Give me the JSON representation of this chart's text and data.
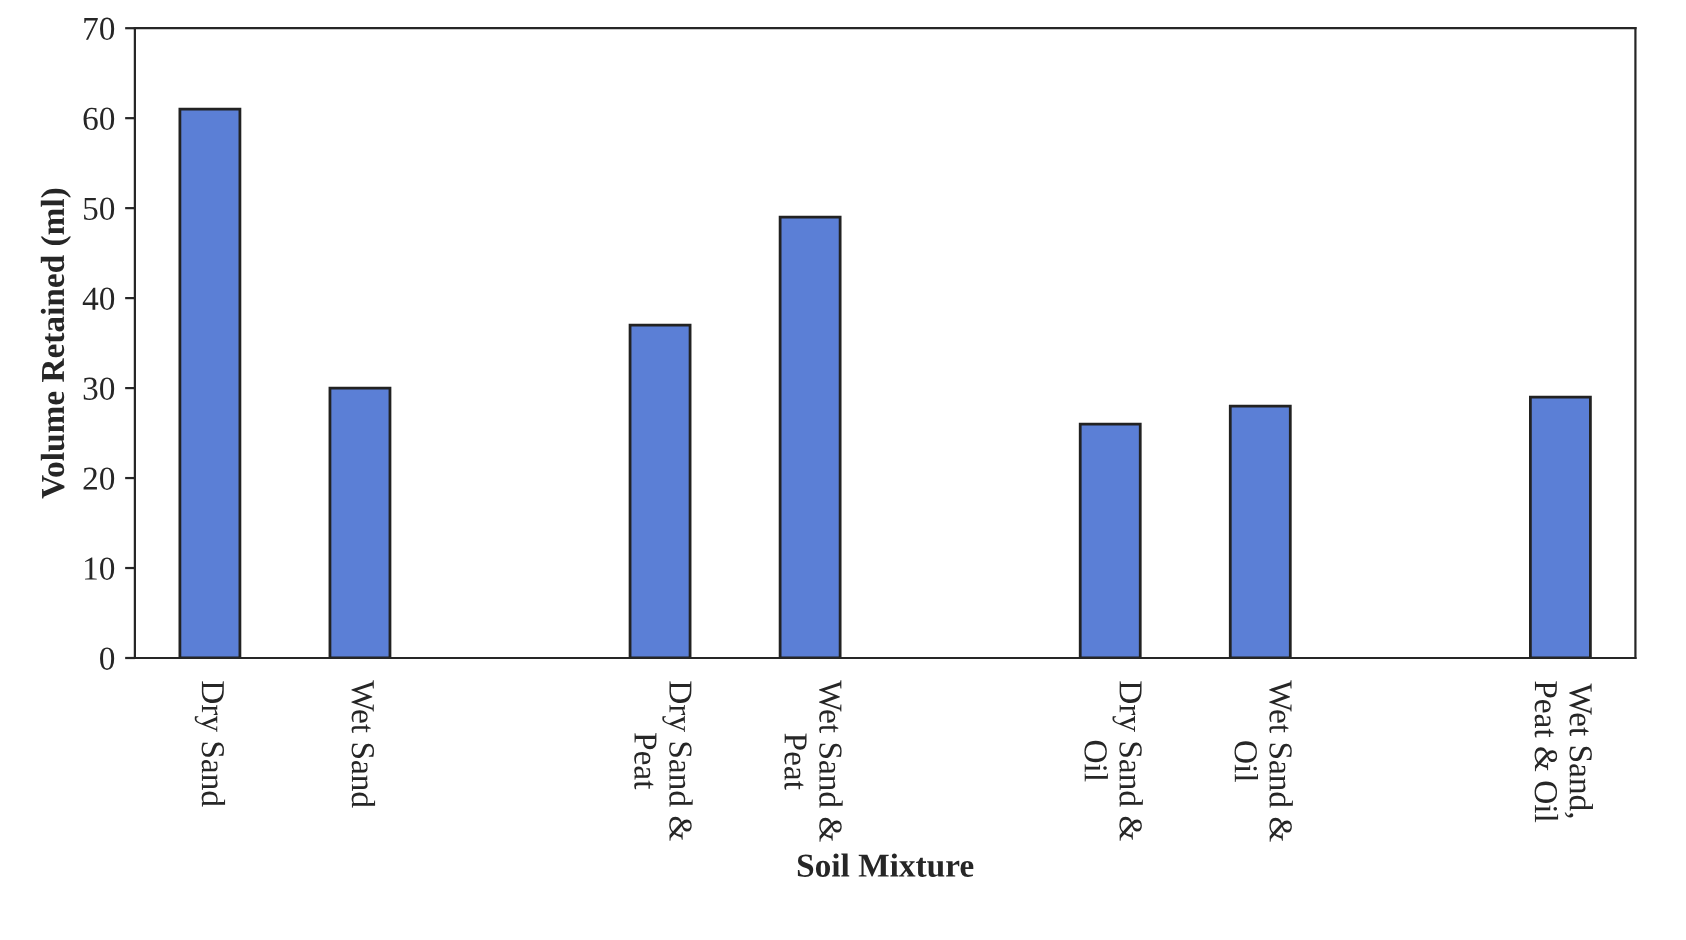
{
  "chart_data": {
    "type": "bar",
    "xlabel": "Soil Mixture",
    "ylabel": "Volume Retained (ml)",
    "categories": [
      "Dry Sand",
      "Wet Sand",
      null,
      "Dry Sand &\nPeat",
      "Wet Sand &\nPeat",
      null,
      "Dry Sand &\nOil",
      "Wet Sand &\nOil",
      null,
      "Wet Sand,\nPeat & Oil"
    ],
    "values": [
      61,
      30,
      null,
      37,
      49,
      null,
      26,
      28,
      null,
      29
    ],
    "color": "#5b7fd6",
    "ylim": [
      0,
      70
    ],
    "yticks": [
      0,
      10,
      20,
      30,
      40,
      50,
      60,
      70
    ],
    "grid": false
  }
}
